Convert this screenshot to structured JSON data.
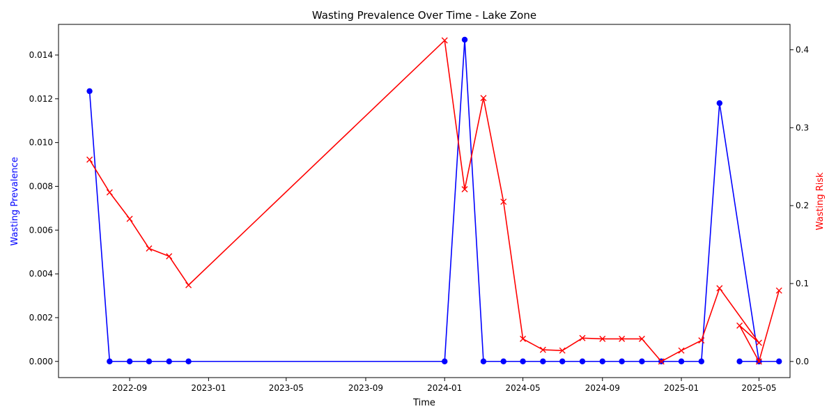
{
  "chart_data": {
    "type": "line",
    "title": "Wasting Prevalence Over Time - Lake Zone",
    "xlabel": "Time",
    "x_ticks": [
      "2022-09",
      "2023-01",
      "2023-05",
      "2023-09",
      "2024-01",
      "2024-05",
      "2024-09",
      "2025-01",
      "2025-05"
    ],
    "xlim": [
      "2022-05-14",
      "2025-06-18"
    ],
    "left_axis": {
      "label": "Wasting Prevalence",
      "color": "#0000ff",
      "ylim": [
        -0.00074,
        0.0154
      ],
      "ticks": [
        "0.000",
        "0.002",
        "0.004",
        "0.006",
        "0.008",
        "0.010",
        "0.012",
        "0.014"
      ]
    },
    "right_axis": {
      "label": "Wasting Risk",
      "color": "#ff0000",
      "ylim": [
        -0.0207,
        0.4326
      ],
      "ticks": [
        "0.0",
        "0.1",
        "0.2",
        "0.3",
        "0.4"
      ]
    },
    "grid": false,
    "series": [
      {
        "axis": "left",
        "color": "#0000ff",
        "marker": "circle",
        "points": [
          [
            "2022-07-01",
            0.01235
          ],
          [
            "2022-08-01",
            0.0
          ],
          [
            "2022-09-01",
            0.0
          ],
          [
            "2022-10-01",
            0.0
          ],
          [
            "2022-11-01",
            0.0
          ],
          [
            "2022-12-01",
            0.0
          ],
          [
            "2024-01-01",
            0.0
          ],
          [
            "2024-02-01",
            0.0147
          ],
          [
            "2024-03-01",
            0.0
          ],
          [
            "2024-04-01",
            0.0
          ],
          [
            "2024-05-01",
            0.0
          ],
          [
            "2024-06-01",
            0.0
          ],
          [
            "2024-07-01",
            0.0
          ],
          [
            "2024-08-01",
            0.0
          ],
          [
            "2024-09-01",
            0.0
          ],
          [
            "2024-10-01",
            0.0
          ],
          [
            "2024-11-01",
            0.0
          ],
          [
            "2024-12-01",
            0.0
          ],
          [
            "2025-01-01",
            0.0
          ],
          [
            "2025-02-01",
            0.0
          ],
          [
            "2025-03-01",
            0.0118
          ],
          [
            "2025-05-01",
            0.0
          ],
          [
            "2025-04-01",
            0.0
          ],
          [
            "2025-05-01",
            0.0
          ],
          [
            "2025-06-01",
            0.0
          ]
        ]
      },
      {
        "axis": "right",
        "color": "#ff0000",
        "marker": "x",
        "points": [
          [
            "2022-07-01",
            0.259
          ],
          [
            "2022-08-01",
            0.217
          ],
          [
            "2022-09-01",
            0.183
          ],
          [
            "2022-10-01",
            0.145
          ],
          [
            "2022-11-01",
            0.135
          ],
          [
            "2022-12-01",
            0.098
          ],
          [
            "2024-01-01",
            0.412
          ],
          [
            "2024-02-01",
            0.221
          ],
          [
            "2024-03-01",
            0.338
          ],
          [
            "2024-04-01",
            0.205
          ],
          [
            "2024-05-01",
            0.029
          ],
          [
            "2024-06-01",
            0.015
          ],
          [
            "2024-07-01",
            0.014
          ],
          [
            "2024-08-01",
            0.03
          ],
          [
            "2024-09-01",
            0.029
          ],
          [
            "2024-10-01",
            0.029
          ],
          [
            "2024-11-01",
            0.029
          ],
          [
            "2024-12-01",
            0.0
          ],
          [
            "2025-01-01",
            0.014
          ],
          [
            "2025-02-01",
            0.027
          ],
          [
            "2025-03-01",
            0.094
          ],
          [
            "2025-05-01",
            0.024
          ],
          [
            "2025-04-01",
            0.046
          ],
          [
            "2025-05-01",
            0.0
          ],
          [
            "2025-06-01",
            0.091
          ]
        ]
      }
    ]
  }
}
